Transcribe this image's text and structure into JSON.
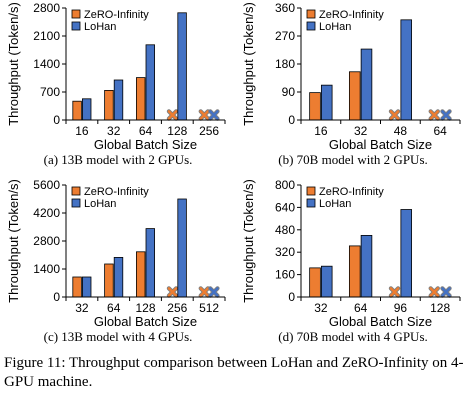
{
  "colors": {
    "zero_infinity": "#ED7D31",
    "lohan": "#4472C4",
    "marker_edge": "#7F7F7F"
  },
  "legend_placement": "top-left",
  "missing_marker": "x",
  "chart_data": [
    {
      "id": "a",
      "type": "bar",
      "caption": "(a) 13B model with 2 GPUs.",
      "xlabel": "Global Batch Size",
      "ylabel": "Throughput (Token/s)",
      "ylim": [
        0,
        2800
      ],
      "yticks": [
        0,
        700,
        1400,
        2100,
        2800
      ],
      "categories": [
        "16",
        "32",
        "64",
        "128",
        "256"
      ],
      "series": [
        {
          "name": "ZeRO-Infinity",
          "values": [
            470,
            740,
            1060,
            null,
            null
          ]
        },
        {
          "name": "LoHan",
          "values": [
            530,
            1000,
            1880,
            2680,
            null
          ]
        }
      ]
    },
    {
      "id": "b",
      "type": "bar",
      "caption": "(b) 70B model with 2 GPUs.",
      "xlabel": "Global Batch Size",
      "ylabel": "Throughput (Token/s)",
      "ylim": [
        0,
        360
      ],
      "yticks": [
        0,
        90,
        180,
        270,
        360
      ],
      "categories": [
        "16",
        "32",
        "48",
        "64"
      ],
      "series": [
        {
          "name": "ZeRO-Infinity",
          "values": [
            88,
            155,
            null,
            null
          ]
        },
        {
          "name": "LoHan",
          "values": [
            112,
            228,
            322,
            null
          ]
        }
      ]
    },
    {
      "id": "c",
      "type": "bar",
      "caption": "(c) 13B model with 4 GPUs.",
      "xlabel": "Global Batch Size",
      "ylabel": "Throughput (Token/s)",
      "ylim": [
        0,
        5600
      ],
      "yticks": [
        0,
        1400,
        2800,
        4200,
        5600
      ],
      "categories": [
        "32",
        "64",
        "128",
        "256",
        "512"
      ],
      "series": [
        {
          "name": "ZeRO-Infinity",
          "values": [
            1000,
            1650,
            2260,
            null,
            null
          ]
        },
        {
          "name": "LoHan",
          "values": [
            1000,
            1980,
            3420,
            4900,
            null
          ]
        }
      ]
    },
    {
      "id": "d",
      "type": "bar",
      "caption": "(d) 70B model with 4 GPUs.",
      "xlabel": "Global Batch Size",
      "ylabel": "Throughput (Token/s)",
      "ylim": [
        0,
        800
      ],
      "yticks": [
        0,
        160,
        320,
        480,
        640,
        800
      ],
      "categories": [
        "32",
        "64",
        "96",
        "128"
      ],
      "series": [
        {
          "name": "ZeRO-Infinity",
          "values": [
            208,
            365,
            null,
            null
          ]
        },
        {
          "name": "LoHan",
          "values": [
            220,
            440,
            625,
            null
          ]
        }
      ]
    }
  ],
  "figure_caption": "Figure 11: Throughput comparison between LoHan and ZeRO-Infinity on 4-GPU machine."
}
